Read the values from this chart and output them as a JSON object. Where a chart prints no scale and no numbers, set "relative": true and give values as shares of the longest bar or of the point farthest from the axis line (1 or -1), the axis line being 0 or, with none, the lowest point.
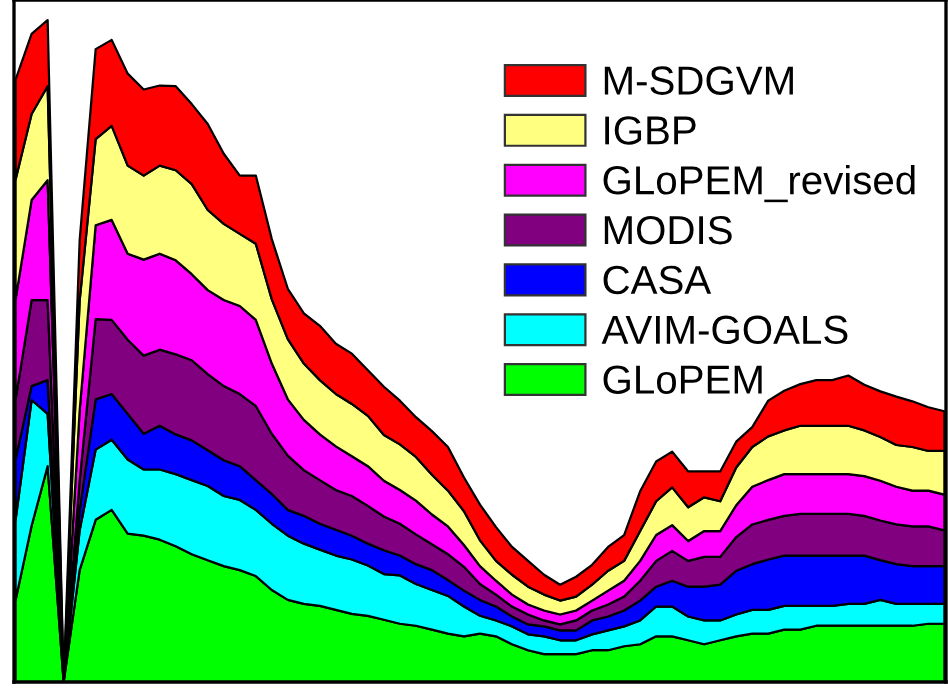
{
  "chart_data": {
    "type": "area",
    "stacked": true,
    "relative": true,
    "legend": "top right",
    "categories": [
      null,
      null,
      null,
      null,
      null,
      null,
      null,
      null,
      null,
      null,
      null,
      null,
      null,
      null,
      null,
      null,
      null,
      null,
      null,
      null,
      null,
      null,
      null,
      null,
      null,
      null,
      null,
      null,
      null,
      null,
      null,
      null,
      null,
      null,
      null,
      null,
      null,
      null,
      null,
      null,
      null,
      null,
      null,
      null,
      null,
      null,
      null,
      null,
      null,
      null,
      null,
      null,
      null,
      null,
      null,
      null,
      null,
      null,
      null
    ],
    "series": [
      {
        "name": "GLoPEM",
        "color": "#00ff00",
        "values": [
          0.124,
          0.236,
          0.326,
          0,
          0.169,
          0.245,
          0.26,
          0.224,
          0.221,
          0.215,
          0.205,
          0.193,
          0.184,
          0.175,
          0.169,
          0.16,
          0.139,
          0.124,
          0.118,
          0.115,
          0.109,
          0.103,
          0.1,
          0.094,
          0.088,
          0.085,
          0.079,
          0.073,
          0.069,
          0.073,
          0.069,
          0.057,
          0.048,
          0.042,
          0.042,
          0.042,
          0.048,
          0.048,
          0.054,
          0.057,
          0.069,
          0.069,
          0.063,
          0.057,
          0.063,
          0.069,
          0.073,
          0.073,
          0.079,
          0.079,
          0.085,
          0.085,
          0.085,
          0.085,
          0.085,
          0.085,
          0.085,
          0.088,
          0.088
        ]
      },
      {
        "name": "AVIM-GOALS",
        "color": "#00ffff",
        "values": [
          0.121,
          0.19,
          0.079,
          0,
          0.06,
          0.106,
          0.106,
          0.112,
          0.1,
          0.106,
          0.109,
          0.112,
          0.112,
          0.106,
          0.106,
          0.1,
          0.1,
          0.097,
          0.091,
          0.085,
          0.082,
          0.082,
          0.076,
          0.069,
          0.073,
          0.063,
          0.06,
          0.057,
          0.045,
          0.027,
          0.024,
          0.027,
          0.024,
          0.027,
          0.021,
          0.021,
          0.024,
          0.03,
          0.03,
          0.036,
          0.045,
          0.045,
          0.036,
          0.036,
          0.03,
          0.033,
          0.036,
          0.036,
          0.036,
          0.036,
          0.03,
          0.03,
          0.033,
          0.033,
          0.039,
          0.033,
          0.033,
          0.03,
          0.03
        ]
      },
      {
        "name": "CASA",
        "color": "#0000ff",
        "values": [
          0.091,
          0.021,
          0.051,
          0,
          0.03,
          0.076,
          0.069,
          0.069,
          0.054,
          0.066,
          0.06,
          0.06,
          0.054,
          0.054,
          0.051,
          0.045,
          0.045,
          0.039,
          0.042,
          0.039,
          0.039,
          0.036,
          0.033,
          0.036,
          0.03,
          0.03,
          0.03,
          0.024,
          0.024,
          0.024,
          0.021,
          0.015,
          0.015,
          0.015,
          0.015,
          0.015,
          0.021,
          0.021,
          0.024,
          0.03,
          0.03,
          0.039,
          0.045,
          0.051,
          0.054,
          0.066,
          0.069,
          0.076,
          0.076,
          0.076,
          0.076,
          0.076,
          0.073,
          0.073,
          0.06,
          0.06,
          0.057,
          0.057,
          0.057
        ]
      },
      {
        "name": "MODIS",
        "color": "#800080",
        "values": [
          0.091,
          0.13,
          0.121,
          0,
          0.045,
          0.121,
          0.112,
          0.112,
          0.118,
          0.115,
          0.121,
          0.121,
          0.115,
          0.112,
          0.109,
          0.112,
          0.091,
          0.082,
          0.069,
          0.066,
          0.06,
          0.06,
          0.057,
          0.051,
          0.048,
          0.045,
          0.039,
          0.039,
          0.036,
          0.024,
          0.018,
          0.015,
          0.015,
          0.009,
          0.009,
          0.015,
          0.015,
          0.018,
          0.021,
          0.03,
          0.039,
          0.045,
          0.039,
          0.045,
          0.042,
          0.051,
          0.06,
          0.06,
          0.06,
          0.063,
          0.063,
          0.063,
          0.063,
          0.06,
          0.06,
          0.06,
          0.06,
          0.06,
          0.054
        ]
      },
      {
        "name": "GLoPEM_revised",
        "color": "#ff00ff",
        "values": [
          0.151,
          0.151,
          0.181,
          0,
          0.106,
          0.142,
          0.151,
          0.13,
          0.145,
          0.145,
          0.142,
          0.13,
          0.127,
          0.13,
          0.133,
          0.13,
          0.106,
          0.085,
          0.076,
          0.069,
          0.066,
          0.06,
          0.06,
          0.054,
          0.051,
          0.051,
          0.045,
          0.042,
          0.033,
          0.027,
          0.021,
          0.018,
          0.015,
          0.015,
          0.015,
          0.015,
          0.015,
          0.021,
          0.024,
          0.03,
          0.039,
          0.039,
          0.03,
          0.039,
          0.039,
          0.048,
          0.057,
          0.06,
          0.063,
          0.06,
          0.06,
          0.06,
          0.06,
          0.06,
          0.06,
          0.057,
          0.054,
          0.054,
          0.054
        ]
      },
      {
        "name": "IGBP",
        "color": "#ffff80",
        "values": [
          0.181,
          0.13,
          0.142,
          0,
          0.166,
          0.13,
          0.142,
          0.133,
          0.127,
          0.133,
          0.136,
          0.136,
          0.121,
          0.115,
          0.109,
          0.115,
          0.097,
          0.091,
          0.085,
          0.082,
          0.079,
          0.079,
          0.076,
          0.069,
          0.069,
          0.066,
          0.06,
          0.054,
          0.051,
          0.039,
          0.03,
          0.03,
          0.027,
          0.024,
          0.021,
          0.021,
          0.024,
          0.03,
          0.03,
          0.045,
          0.051,
          0.057,
          0.051,
          0.051,
          0.045,
          0.057,
          0.06,
          0.066,
          0.066,
          0.073,
          0.073,
          0.073,
          0.073,
          0.069,
          0.066,
          0.063,
          0.066,
          0.06,
          0.066
        ]
      },
      {
        "name": "M-SDGVM",
        "color": "#ff0000",
        "values": [
          0.151,
          0.121,
          0.1,
          0,
          0.091,
          0.136,
          0.13,
          0.139,
          0.13,
          0.121,
          0.127,
          0.121,
          0.13,
          0.106,
          0.088,
          0.103,
          0.091,
          0.076,
          0.076,
          0.082,
          0.076,
          0.076,
          0.069,
          0.073,
          0.066,
          0.06,
          0.066,
          0.066,
          0.051,
          0.054,
          0.051,
          0.042,
          0.039,
          0.03,
          0.024,
          0.03,
          0.03,
          0.036,
          0.039,
          0.06,
          0.06,
          0.054,
          0.054,
          0.039,
          0.045,
          0.039,
          0.03,
          0.054,
          0.06,
          0.063,
          0.069,
          0.069,
          0.076,
          0.069,
          0.069,
          0.073,
          0.069,
          0.066,
          0.06
        ]
      }
    ]
  }
}
